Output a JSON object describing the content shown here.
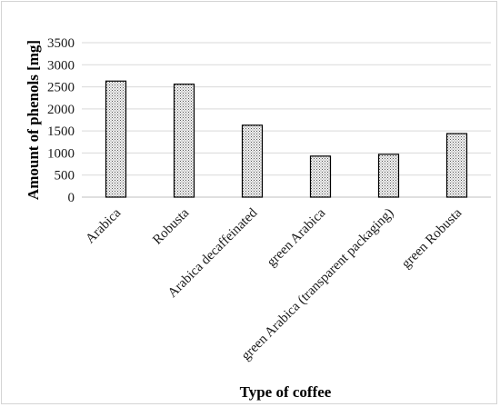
{
  "chart_data": {
    "type": "bar",
    "title": "",
    "xlabel": "Type of coffee",
    "ylabel": "Amount of phenols [mg]",
    "categories": [
      "Arabica",
      "Robusta",
      "Arabica decaffeinated",
      "green Arabica",
      "green Arabica (transparent packaging)",
      "green Robusta"
    ],
    "values": [
      2630,
      2560,
      1630,
      930,
      970,
      1440
    ],
    "ylim": [
      0,
      3500
    ],
    "yticks": [
      0,
      500,
      1000,
      1500,
      2000,
      2500,
      3000,
      3500
    ],
    "grid": true,
    "legend": "none",
    "colors": {
      "bar_fill": "#d9d9d9",
      "bar_stroke": "#000000",
      "grid": "#d9d9d9",
      "axis": "#bfbfbf"
    }
  }
}
